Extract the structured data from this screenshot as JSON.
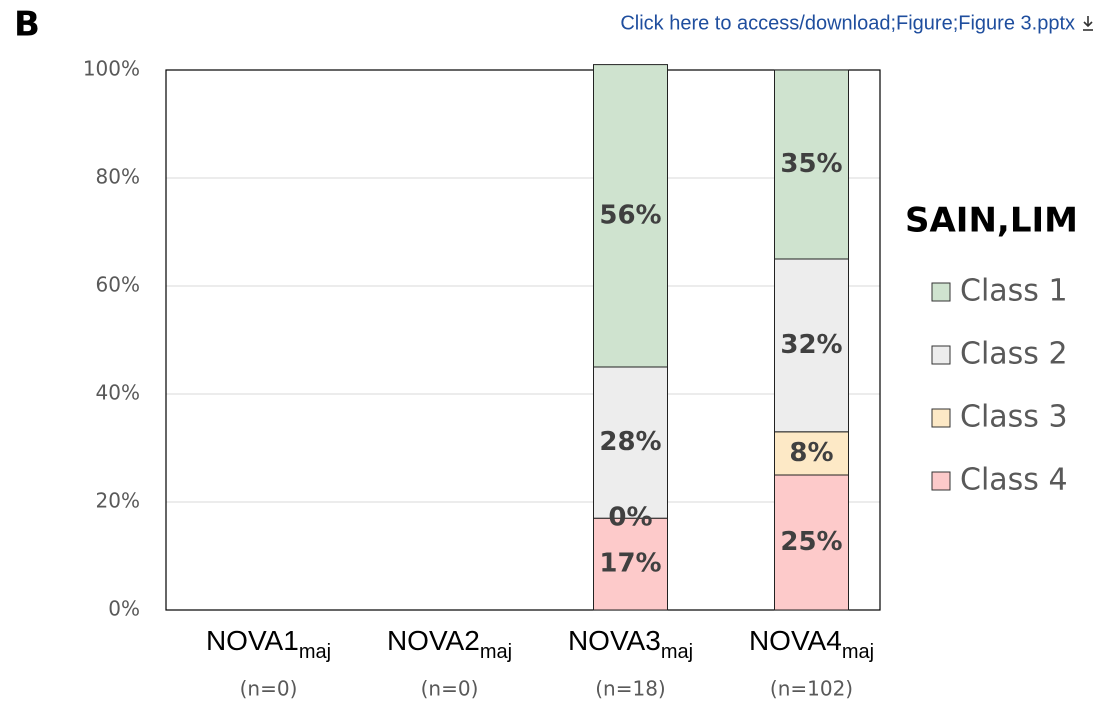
{
  "panel_label": "B",
  "header_link": "Click here to access/download;Figure;Figure 3.pptx",
  "chart_data": {
    "type": "stacked_bar",
    "categories": [
      "NOVA1",
      "NOVA2",
      "NOVA3",
      "NOVA4"
    ],
    "category_subscripts": [
      "maj",
      "maj",
      "maj",
      "maj"
    ],
    "category_counts": [
      "(n=0)",
      "(n=0)",
      "(n=18)",
      "(n=102)"
    ],
    "series": [
      {
        "name": "Class 1",
        "color": "#cfe3cf",
        "values": [
          null,
          null,
          56,
          35
        ],
        "value_labels": [
          null,
          null,
          "56%",
          "35%"
        ]
      },
      {
        "name": "Class 2",
        "color": "#ededed",
        "values": [
          null,
          null,
          28,
          32
        ],
        "value_labels": [
          null,
          null,
          "28%",
          "32%"
        ]
      },
      {
        "name": "Class 3",
        "color": "#fde9c6",
        "values": [
          null,
          null,
          0,
          8
        ],
        "value_labels": [
          null,
          null,
          "0%",
          "8%"
        ]
      },
      {
        "name": "Class 4",
        "color": "#fdcaca",
        "values": [
          null,
          null,
          17,
          25
        ],
        "value_labels": [
          null,
          null,
          "17%",
          "25%"
        ]
      }
    ],
    "legend_title": "SAIN,LIM",
    "legend_position": "right",
    "ylim": [
      0,
      100
    ],
    "yticks": [
      {
        "value": 0,
        "label": "0%"
      },
      {
        "value": 20,
        "label": "20%"
      },
      {
        "value": 40,
        "label": "40%"
      },
      {
        "value": 60,
        "label": "60%"
      },
      {
        "value": 80,
        "label": "80%"
      },
      {
        "value": 100,
        "label": "100%"
      }
    ],
    "grid": true
  }
}
